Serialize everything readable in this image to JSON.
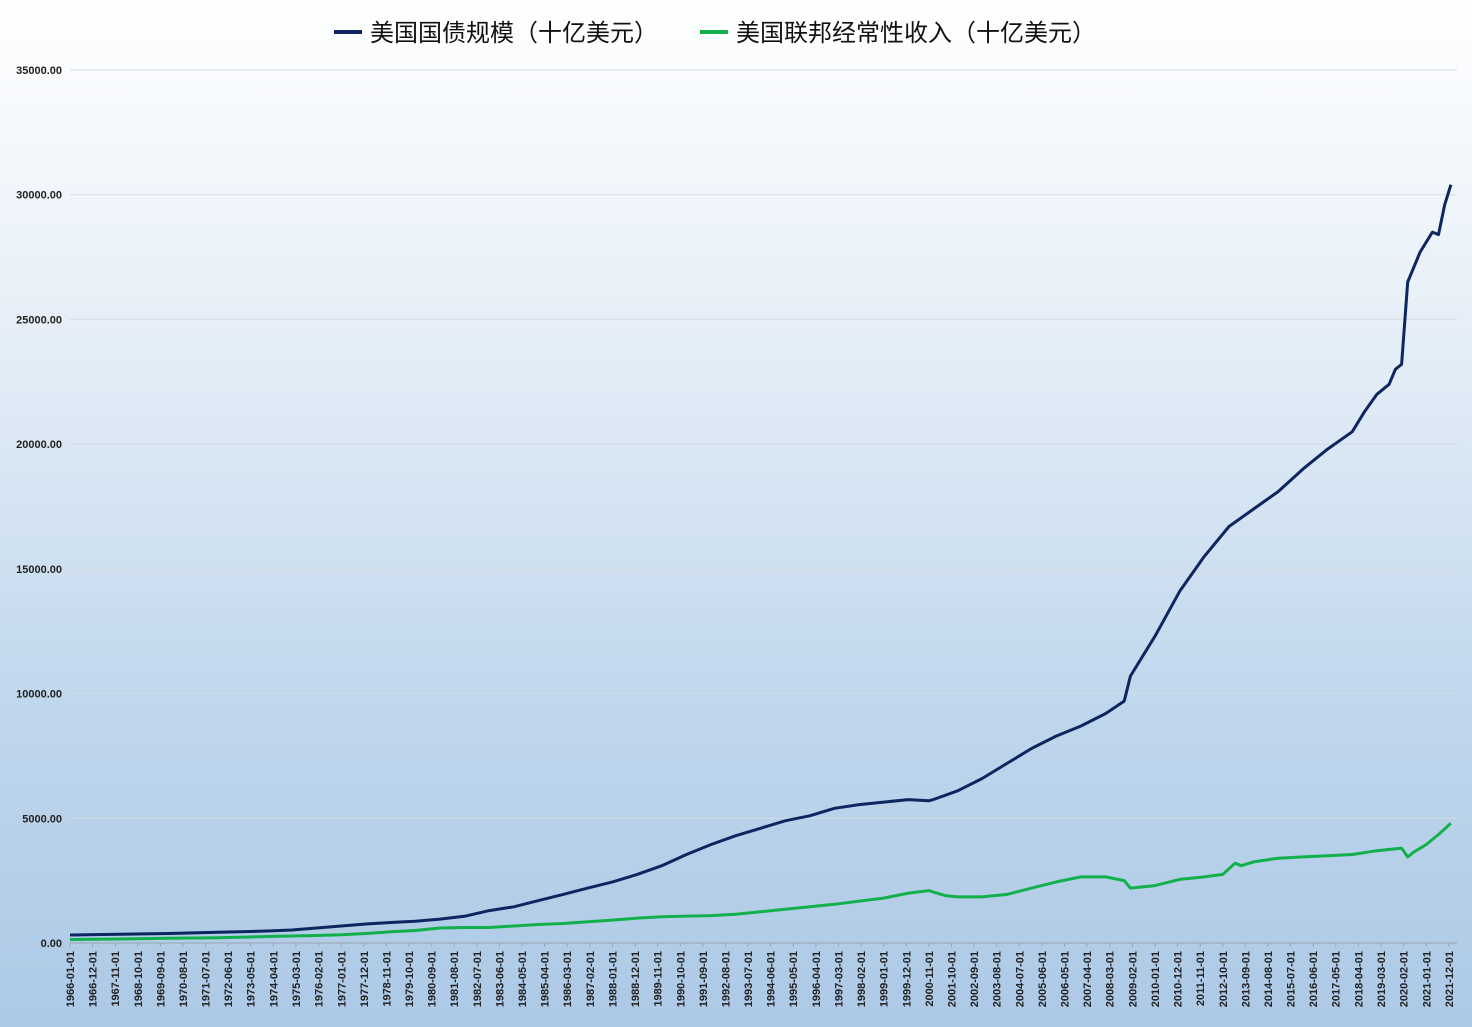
{
  "chart_data": {
    "type": "line",
    "title": "",
    "xlabel": "",
    "ylabel": "",
    "ylim": [
      0,
      35000
    ],
    "yticks": [
      "0.00",
      "5000.00",
      "10000.00",
      "15000.00",
      "20000.00",
      "25000.00",
      "30000.00",
      "35000.00"
    ],
    "grid": true,
    "legend": "top-center",
    "x_tick_labels": [
      "1966-01-01",
      "1966-12-01",
      "1967-11-01",
      "1968-10-01",
      "1969-09-01",
      "1970-08-01",
      "1971-07-01",
      "1972-06-01",
      "1973-05-01",
      "1974-04-01",
      "1975-03-01",
      "1976-02-01",
      "1977-01-01",
      "1977-12-01",
      "1978-11-01",
      "1979-10-01",
      "1980-09-01",
      "1981-08-01",
      "1982-07-01",
      "1983-06-01",
      "1984-05-01",
      "1985-04-01",
      "1986-03-01",
      "1987-02-01",
      "1988-01-01",
      "1988-12-01",
      "1989-11-01",
      "1990-10-01",
      "1991-09-01",
      "1992-08-01",
      "1993-07-01",
      "1994-06-01",
      "1995-05-01",
      "1996-04-01",
      "1997-03-01",
      "1998-02-01",
      "1999-01-01",
      "1999-12-01",
      "2000-11-01",
      "2001-10-01",
      "2002-09-01",
      "2003-08-01",
      "2004-07-01",
      "2005-06-01",
      "2006-05-01",
      "2007-04-01",
      "2008-03-01",
      "2009-02-01",
      "2010-01-01",
      "2010-12-01",
      "2011-11-01",
      "2012-10-01",
      "2013-09-01",
      "2014-08-01",
      "2015-07-01",
      "2016-06-01",
      "2017-05-01",
      "2018-04-01",
      "2019-03-01",
      "2020-02-01",
      "2021-01-01",
      "2021-12-01"
    ],
    "x_range": [
      "1966-01-01",
      "2022-04-01"
    ],
    "series": [
      {
        "name": "美国国债规模（十亿美元）",
        "color": "#0d2660",
        "points": [
          [
            "1966-01-01",
            321
          ],
          [
            "1968-01-01",
            350
          ],
          [
            "1970-01-01",
            380
          ],
          [
            "1972-01-01",
            430
          ],
          [
            "1974-01-01",
            480
          ],
          [
            "1975-01-01",
            520
          ],
          [
            "1976-01-01",
            600
          ],
          [
            "1977-01-01",
            680
          ],
          [
            "1978-01-01",
            760
          ],
          [
            "1979-01-01",
            820
          ],
          [
            "1980-01-01",
            870
          ],
          [
            "1981-01-01",
            960
          ],
          [
            "1982-01-01",
            1070
          ],
          [
            "1983-01-01",
            1300
          ],
          [
            "1984-01-01",
            1450
          ],
          [
            "1985-01-01",
            1700
          ],
          [
            "1986-01-01",
            1950
          ],
          [
            "1987-01-01",
            2200
          ],
          [
            "1988-01-01",
            2450
          ],
          [
            "1989-01-01",
            2750
          ],
          [
            "1990-01-01",
            3100
          ],
          [
            "1991-01-01",
            3550
          ],
          [
            "1992-01-01",
            3950
          ],
          [
            "1993-01-01",
            4300
          ],
          [
            "1994-01-01",
            4600
          ],
          [
            "1995-01-01",
            4900
          ],
          [
            "1996-01-01",
            5100
          ],
          [
            "1997-01-01",
            5400
          ],
          [
            "1998-01-01",
            5550
          ],
          [
            "1999-01-01",
            5650
          ],
          [
            "2000-01-01",
            5750
          ],
          [
            "2000-11-01",
            5700
          ],
          [
            "2001-01-01",
            5750
          ],
          [
            "2002-01-01",
            6100
          ],
          [
            "2003-01-01",
            6600
          ],
          [
            "2004-01-01",
            7200
          ],
          [
            "2005-01-01",
            7800
          ],
          [
            "2006-01-01",
            8300
          ],
          [
            "2007-01-01",
            8700
          ],
          [
            "2008-01-01",
            9200
          ],
          [
            "2008-10-01",
            9700
          ],
          [
            "2009-01-01",
            10700
          ],
          [
            "2010-01-01",
            12300
          ],
          [
            "2011-01-01",
            14100
          ],
          [
            "2012-01-01",
            15500
          ],
          [
            "2013-01-01",
            16700
          ],
          [
            "2014-01-01",
            17400
          ],
          [
            "2015-01-01",
            18100
          ],
          [
            "2016-01-01",
            19000
          ],
          [
            "2017-01-01",
            19800
          ],
          [
            "2018-01-01",
            20500
          ],
          [
            "2018-07-01",
            21300
          ],
          [
            "2019-01-01",
            22000
          ],
          [
            "2019-07-01",
            22400
          ],
          [
            "2019-10-01",
            23000
          ],
          [
            "2020-01-01",
            23200
          ],
          [
            "2020-04-01",
            26500
          ],
          [
            "2020-10-01",
            27700
          ],
          [
            "2021-04-01",
            28500
          ],
          [
            "2021-07-01",
            28400
          ],
          [
            "2021-10-01",
            29600
          ],
          [
            "2022-01-01",
            30400
          ]
        ]
      },
      {
        "name": "美国联邦经常性收入（十亿美元）",
        "color": "#12b04b",
        "points": [
          [
            "1966-01-01",
            140
          ],
          [
            "1968-01-01",
            160
          ],
          [
            "1970-01-01",
            190
          ],
          [
            "1972-01-01",
            210
          ],
          [
            "1974-01-01",
            260
          ],
          [
            "1975-01-01",
            280
          ],
          [
            "1976-01-01",
            300
          ],
          [
            "1977-01-01",
            330
          ],
          [
            "1978-01-01",
            380
          ],
          [
            "1979-01-01",
            450
          ],
          [
            "1980-01-01",
            500
          ],
          [
            "1981-01-01",
            600
          ],
          [
            "1982-01-01",
            620
          ],
          [
            "1983-01-01",
            620
          ],
          [
            "1984-01-01",
            680
          ],
          [
            "1985-01-01",
            740
          ],
          [
            "1986-01-01",
            780
          ],
          [
            "1987-01-01",
            850
          ],
          [
            "1988-01-01",
            920
          ],
          [
            "1989-01-01",
            1000
          ],
          [
            "1990-01-01",
            1050
          ],
          [
            "1991-01-01",
            1080
          ],
          [
            "1992-01-01",
            1100
          ],
          [
            "1993-01-01",
            1150
          ],
          [
            "1994-01-01",
            1250
          ],
          [
            "1995-01-01",
            1350
          ],
          [
            "1996-01-01",
            1450
          ],
          [
            "1997-01-01",
            1550
          ],
          [
            "1998-01-01",
            1680
          ],
          [
            "1999-01-01",
            1800
          ],
          [
            "2000-01-01",
            2000
          ],
          [
            "2000-11-01",
            2100
          ],
          [
            "2001-01-01",
            2050
          ],
          [
            "2001-07-01",
            1900
          ],
          [
            "2002-01-01",
            1850
          ],
          [
            "2003-01-01",
            1850
          ],
          [
            "2004-01-01",
            1950
          ],
          [
            "2005-01-01",
            2200
          ],
          [
            "2006-01-01",
            2450
          ],
          [
            "2007-01-01",
            2650
          ],
          [
            "2008-01-01",
            2650
          ],
          [
            "2008-10-01",
            2500
          ],
          [
            "2009-01-01",
            2200
          ],
          [
            "2010-01-01",
            2300
          ],
          [
            "2011-01-01",
            2550
          ],
          [
            "2012-01-01",
            2650
          ],
          [
            "2012-10-01",
            2750
          ],
          [
            "2013-04-01",
            3200
          ],
          [
            "2013-07-01",
            3100
          ],
          [
            "2014-01-01",
            3250
          ],
          [
            "2015-01-01",
            3400
          ],
          [
            "2016-01-01",
            3450
          ],
          [
            "2017-01-01",
            3500
          ],
          [
            "2018-01-01",
            3550
          ],
          [
            "2019-01-01",
            3700
          ],
          [
            "2020-01-01",
            3800
          ],
          [
            "2020-04-01",
            3450
          ],
          [
            "2020-07-01",
            3650
          ],
          [
            "2021-01-01",
            3950
          ],
          [
            "2021-07-01",
            4350
          ],
          [
            "2022-01-01",
            4800
          ]
        ]
      }
    ]
  }
}
